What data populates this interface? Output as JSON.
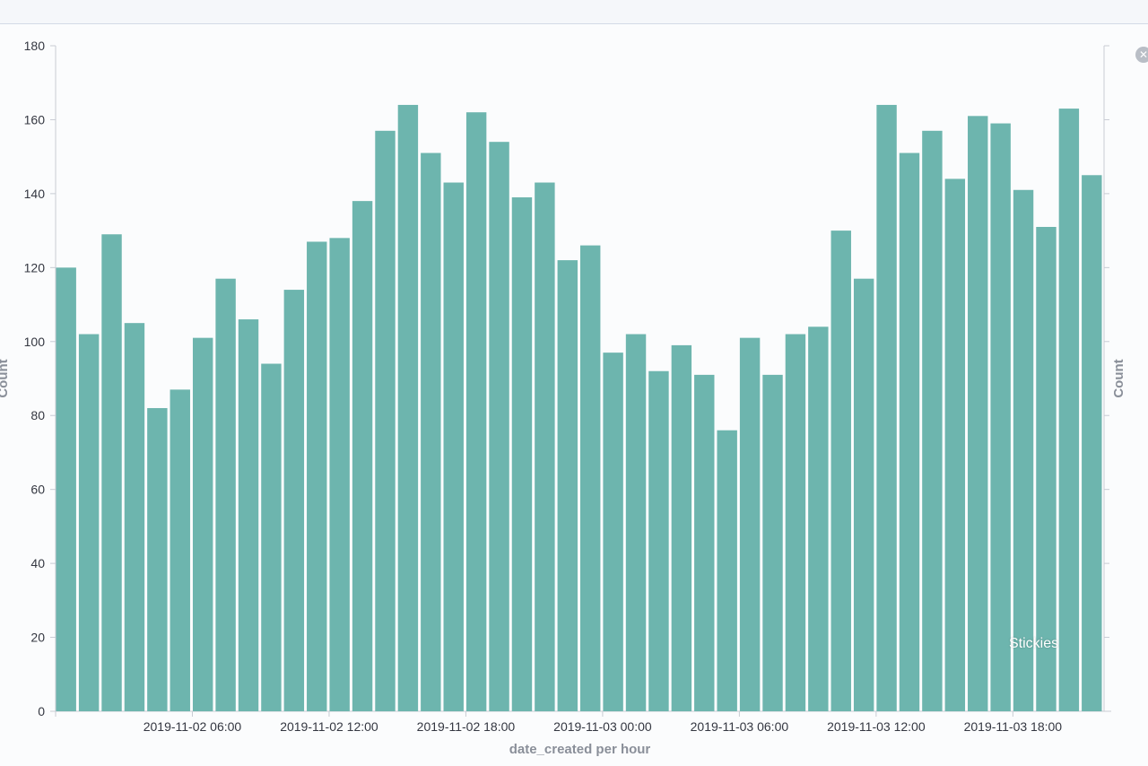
{
  "chart_data": {
    "type": "bar",
    "xlabel": "date_created per hour",
    "ylabel": "Count",
    "ylabel_right": "Count",
    "ylim": [
      0,
      180
    ],
    "yticks": [
      0,
      20,
      40,
      60,
      80,
      100,
      120,
      140,
      160,
      180
    ],
    "xtick_labels": [
      {
        "index": 6,
        "label": "2019-11-02 06:00"
      },
      {
        "index": 12,
        "label": "2019-11-02 12:00"
      },
      {
        "index": 18,
        "label": "2019-11-02 18:00"
      },
      {
        "index": 24,
        "label": "2019-11-03 00:00"
      },
      {
        "index": 30,
        "label": "2019-11-03 06:00"
      },
      {
        "index": 36,
        "label": "2019-11-03 12:00"
      },
      {
        "index": 42,
        "label": "2019-11-03 18:00"
      }
    ],
    "values": [
      120,
      102,
      129,
      105,
      82,
      87,
      101,
      117,
      106,
      94,
      114,
      127,
      128,
      138,
      157,
      164,
      151,
      143,
      162,
      154,
      139,
      143,
      122,
      126,
      97,
      102,
      92,
      99,
      91,
      76,
      101,
      91,
      102,
      104,
      130,
      117,
      164,
      151,
      157,
      144,
      161,
      159,
      141,
      131,
      163,
      145
    ],
    "color": "#6db5ae",
    "grid": false,
    "legend": "none"
  },
  "overlay": {
    "watermark_text": "Stickies",
    "close_icon": "close-icon"
  }
}
